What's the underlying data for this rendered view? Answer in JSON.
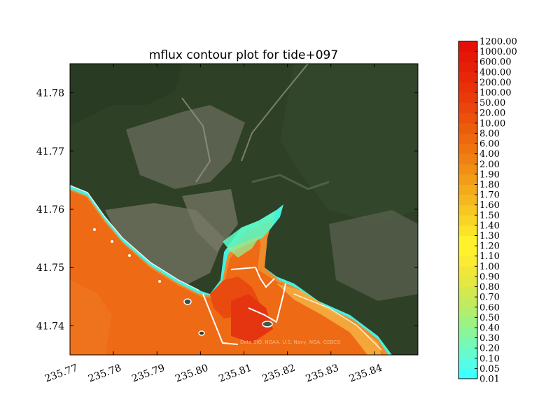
{
  "chart_data": {
    "type": "heatmap",
    "title": "mflux contour plot for tide+097",
    "xlabel": "",
    "ylabel": "",
    "xlim": [
      235.77,
      235.85
    ],
    "ylim": [
      41.735,
      41.785
    ],
    "x_ticks": [
      "235.77",
      "235.78",
      "235.79",
      "235.80",
      "235.81",
      "235.82",
      "235.83",
      "235.84"
    ],
    "y_ticks": [
      "41.74",
      "41.75",
      "41.76",
      "41.77",
      "41.78"
    ],
    "colorbar": {
      "levels": [
        "0.01",
        "0.05",
        "0.10",
        "0.20",
        "0.30",
        "0.40",
        "0.50",
        "0.60",
        "0.70",
        "0.80",
        "0.90",
        "1.00",
        "1.10",
        "1.20",
        "1.30",
        "1.40",
        "1.50",
        "1.60",
        "1.70",
        "1.80",
        "1.90",
        "2.00",
        "4.00",
        "6.00",
        "8.00",
        "10.00",
        "20.00",
        "50.00",
        "100.00",
        "200.00",
        "400.00",
        "600.00",
        "1000.00",
        "1200.00"
      ],
      "colors": [
        "#40ffff",
        "#55fde6",
        "#66fbcc",
        "#78f8b3",
        "#8bf59a",
        "#9ef283",
        "#b0ef70",
        "#c2ec5e",
        "#d3ea4e",
        "#e3e842",
        "#f0e839",
        "#fbeb32",
        "#fff22c",
        "#fff22c",
        "#fbe428",
        "#f8d424",
        "#f6c621",
        "#f4b81e",
        "#f3aa1b",
        "#f29c18",
        "#f18e15",
        "#f08013",
        "#ef7411",
        "#ee680f",
        "#ec5c0d",
        "#eb500c",
        "#ea450b",
        "#e93b0a",
        "#e83109",
        "#e72808",
        "#e62008",
        "#e51807",
        "#e41007"
      ]
    },
    "background_credit": "Data SIO, NOAA, U.S. Navy, NGA, GEBCO"
  }
}
